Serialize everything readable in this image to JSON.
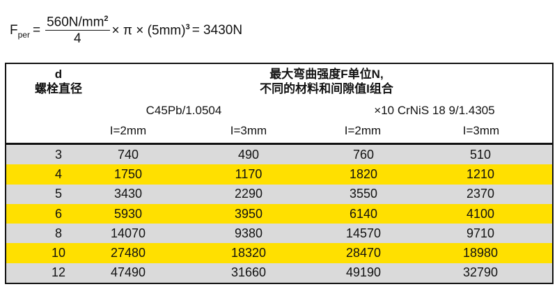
{
  "formula": {
    "lhs": "F",
    "lhs_sub": "per",
    "equals": "=",
    "numerator": "560N/mm",
    "num_exp": "2",
    "denominator": "4",
    "tail": "× π × (5mm)",
    "tail_exp": "3",
    "result": "= 3430N"
  },
  "table": {
    "col0_header": [
      "d",
      "螺栓直径"
    ],
    "title": [
      "最大弯曲强度F单位N,",
      "不同的材料和间隙值I组合"
    ],
    "materials": [
      "C45Pb/1.0504",
      "×10 CrNiS 18 9/1.4305"
    ],
    "gaps": [
      "I=2mm",
      "I=3mm",
      "I=2mm",
      "I=3mm"
    ],
    "rows": [
      [
        "3",
        "740",
        "490",
        "760",
        "510"
      ],
      [
        "4",
        "1750",
        "1170",
        "1820",
        "1210"
      ],
      [
        "5",
        "3430",
        "2290",
        "3550",
        "2370"
      ],
      [
        "6",
        "5930",
        "3950",
        "6140",
        "4100"
      ],
      [
        "8",
        "14070",
        "9380",
        "14570",
        "9710"
      ],
      [
        "10",
        "27480",
        "18320",
        "28470",
        "18980"
      ],
      [
        "12",
        "47490",
        "31660",
        "49190",
        "32790"
      ]
    ],
    "row_colors": [
      "#dadada",
      "#ffe000"
    ]
  }
}
